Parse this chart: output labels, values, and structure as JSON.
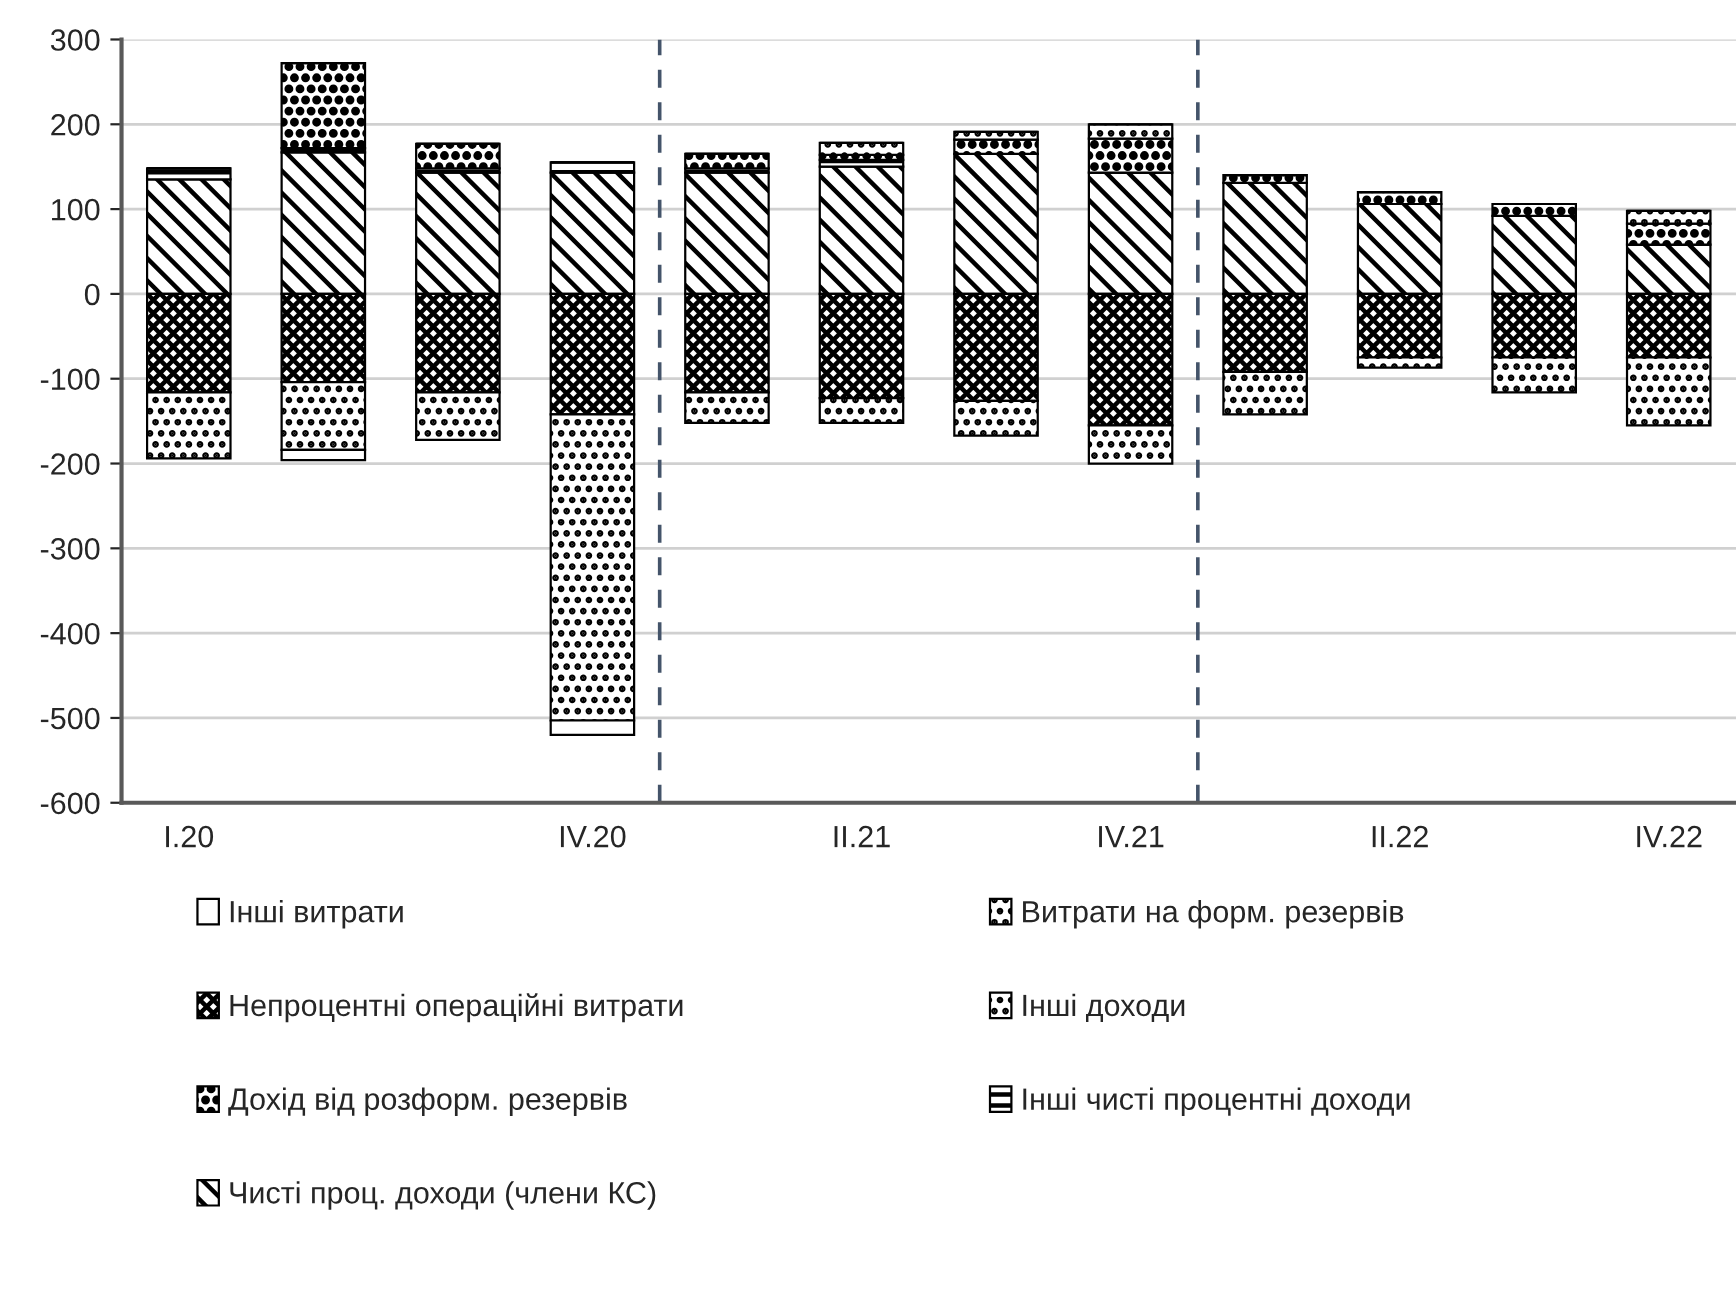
{
  "chart_data": {
    "type": "bar",
    "stacked": true,
    "categories": [
      "I.20",
      null,
      null,
      "IV.20",
      null,
      "II.21",
      null,
      "IV.21",
      null,
      "II.22",
      null,
      "IV.22"
    ],
    "series": [
      {
        "name": "Чисті проц. доходи (члени КС)",
        "color": "#000000",
        "values": [
          135,
          167,
          143,
          143,
          143,
          150,
          165,
          143,
          131,
          106,
          92,
          58
        ]
      },
      {
        "name": "Інші чисті процентні доходи",
        "color": "#000000",
        "values": [
          13,
          5,
          5,
          12,
          5,
          8,
          0,
          0,
          0,
          0,
          0,
          0
        ]
      },
      {
        "name": "Дохід від розформ. резервів",
        "color": "#000000",
        "values": [
          0,
          100,
          29,
          0,
          17,
          6,
          17,
          40,
          9,
          14,
          14,
          25
        ]
      },
      {
        "name": "Інші доходи",
        "color": "#000000",
        "values": [
          0,
          0,
          0,
          0,
          0,
          14,
          9,
          17,
          0,
          0,
          0,
          15
        ]
      },
      {
        "name": "Непроцентні операційні витрати",
        "color": "#000000",
        "values": [
          -116,
          -104,
          -116,
          -142,
          -116,
          -123,
          -126,
          -155,
          -92,
          -75,
          -75,
          -75
        ]
      },
      {
        "name": "Витрати на форм. резервів",
        "color": "#000000",
        "values": [
          -78,
          -80,
          -56,
          -361,
          -36,
          -29,
          -41,
          -45,
          -50,
          -12,
          -41,
          -80
        ]
      },
      {
        "name": "Інші витрати",
        "color": "#000000",
        "values": [
          0,
          -12,
          0,
          -17,
          0,
          0,
          0,
          0,
          0,
          0,
          0,
          0
        ]
      }
    ],
    "ylim": [
      -600,
      300
    ],
    "yticks": [
      -600,
      -500,
      -400,
      -300,
      -200,
      -100,
      0,
      100,
      200,
      300
    ],
    "grid": "y",
    "legend": "bottom"
  }
}
